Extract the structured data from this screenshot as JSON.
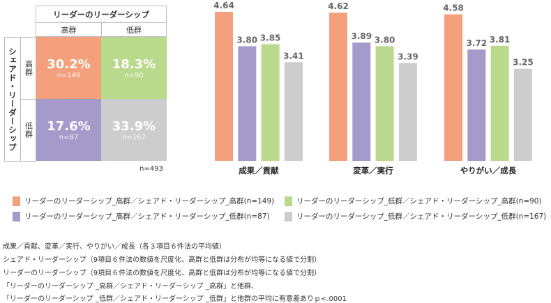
{
  "matrix": {
    "col_header": "リーダーのリーダーシップ",
    "row_header": "シェアド・リーダーシップ",
    "col_labels": [
      "高群",
      "低群"
    ],
    "row_labels": [
      "高群",
      "低群"
    ],
    "cells": [
      {
        "pct": "30.2%",
        "n": "n=149",
        "color": "#f4a07c"
      },
      {
        "pct": "18.3%",
        "n": "n=90",
        "color": "#b9d98c"
      },
      {
        "pct": "17.6%",
        "n": "n=87",
        "color": "#a49bcb"
      },
      {
        "pct": "33.9%",
        "n": "n=167",
        "color": "#cdcdcd"
      }
    ],
    "total": "n=493"
  },
  "chart_data": {
    "type": "bar",
    "categories": [
      "成果／貢献",
      "変革／実行",
      "やりがい／成長"
    ],
    "ylim": [
      1,
      5
    ],
    "series": [
      {
        "name": "リーダーのリーダーシップ_高群／シェアド・リーダーシップ_高群(n=149)",
        "color": "#f4a07c",
        "values": [
          4.64,
          4.62,
          4.58
        ],
        "labels": [
          "4.64",
          "4.62",
          "4.58"
        ]
      },
      {
        "name": "リーダーのリーダーシップ_高群／シェアド・リーダーシップ_低群(n=87)",
        "color": "#a49bcb",
        "values": [
          3.8,
          3.89,
          3.72
        ],
        "labels": [
          "3.80",
          "3.89",
          "3.72"
        ]
      },
      {
        "name": "リーダーのリーダーシップ_低群／シェアド・リーダーシップ_高群(n=90)",
        "color": "#b9d98c",
        "values": [
          3.85,
          3.8,
          3.81
        ],
        "labels": [
          "3.85",
          "3.80",
          "3.81"
        ]
      },
      {
        "name": "リーダーのリーダーシップ_低群／シェアド・リーダーシップ_低群(n=167)",
        "color": "#cdcdcd",
        "values": [
          3.41,
          3.39,
          3.25
        ],
        "labels": [
          "3.41",
          "3.39",
          "3.25"
        ]
      }
    ]
  },
  "notes": [
    "成果／貢献、変革／実行、やりがい／成長（各３項目６件法の平均値）",
    "シェアド・リーダーシップ（9項目６件法の数値を尺度化、高群と低群は分布が均等になる値で分割）",
    "リーダーのリーダーシップ（9項目６件法の数値を尺度化、高群と低群は分布が均等になる値で分割）",
    "「リーダーのリーダーシップ _高群／シェアド・リーダーシップ _高群」と他群、",
    "「リーダーのリーダーシップ _低群／シェアド・リーダーシップ _低群」と他群の平均に有意差ありｐ<.0001"
  ]
}
